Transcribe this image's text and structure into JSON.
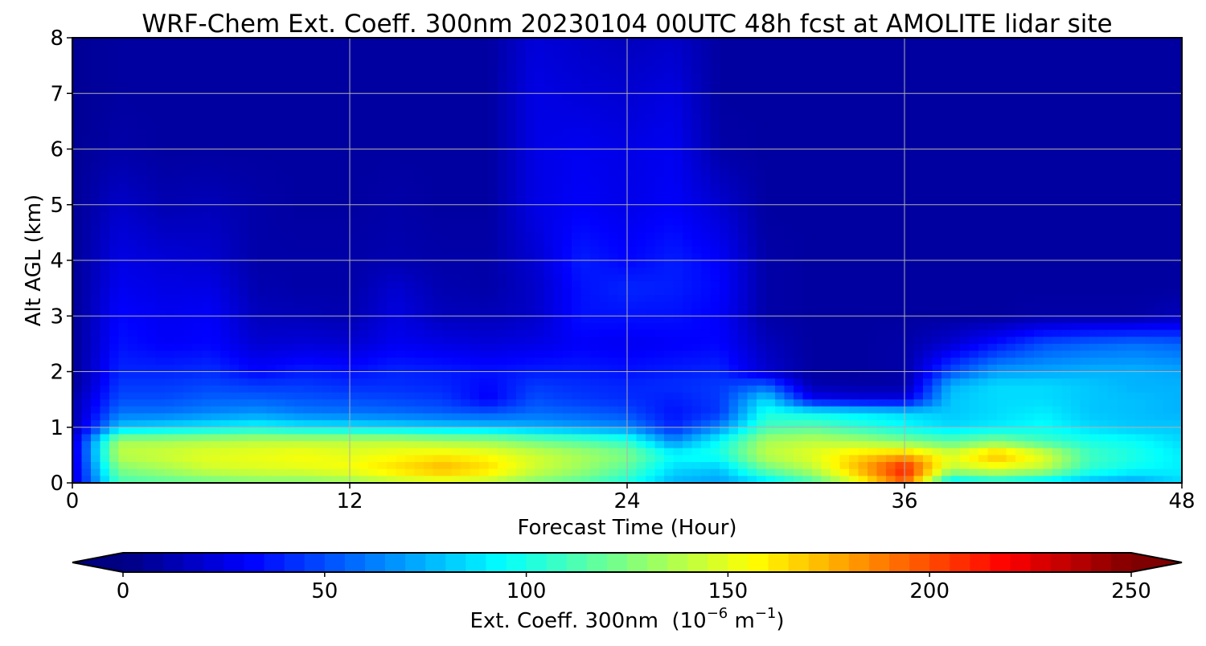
{
  "chart_data": {
    "type": "heatmap",
    "title": "WRF-Chem Ext. Coeff. 300nm  20230104 00UTC 48h fcst at AMOLITE lidar site",
    "xlabel": "Forecast Time (Hour)",
    "ylabel": "Alt AGL (km)",
    "xlim": [
      0,
      48
    ],
    "ylim": [
      0,
      8
    ],
    "xticks": [
      0,
      12,
      24,
      36,
      48
    ],
    "yticks": [
      0,
      1,
      2,
      3,
      4,
      5,
      6,
      7,
      8
    ],
    "grid": true,
    "x": [
      0,
      2,
      4,
      6,
      8,
      10,
      12,
      14,
      16,
      18,
      20,
      22,
      24,
      26,
      28,
      30,
      32,
      34,
      36,
      38,
      40,
      42,
      44,
      46,
      48
    ],
    "y": [
      0,
      0.25,
      0.5,
      0.75,
      1,
      1.25,
      1.5,
      1.75,
      2,
      2.5,
      3,
      3.5,
      4,
      5,
      6,
      7,
      8
    ],
    "z": [
      [
        20,
        110,
        115,
        120,
        125,
        125,
        130,
        140,
        145,
        140,
        125,
        115,
        100,
        75,
        70,
        85,
        110,
        150,
        195,
        85,
        95,
        85,
        75,
        70,
        85
      ],
      [
        20,
        125,
        135,
        145,
        148,
        150,
        155,
        165,
        175,
        165,
        145,
        132,
        115,
        85,
        80,
        120,
        140,
        175,
        215,
        140,
        150,
        140,
        105,
        95,
        90
      ],
      [
        20,
        140,
        145,
        150,
        152,
        155,
        150,
        155,
        160,
        155,
        145,
        135,
        125,
        95,
        100,
        140,
        150,
        165,
        175,
        150,
        175,
        150,
        110,
        100,
        90
      ],
      [
        20,
        135,
        135,
        138,
        140,
        140,
        140,
        140,
        135,
        132,
        122,
        115,
        105,
        65,
        95,
        135,
        140,
        135,
        125,
        115,
        125,
        110,
        100,
        95,
        85
      ],
      [
        10,
        80,
        85,
        90,
        95,
        90,
        88,
        85,
        82,
        80,
        75,
        70,
        65,
        40,
        65,
        110,
        115,
        105,
        95,
        85,
        90,
        95,
        85,
        80,
        80
      ],
      [
        10,
        60,
        60,
        65,
        68,
        62,
        60,
        58,
        55,
        52,
        58,
        55,
        50,
        35,
        45,
        100,
        95,
        90,
        85,
        80,
        85,
        90,
        80,
        78,
        75
      ],
      [
        10,
        50,
        50,
        55,
        55,
        52,
        50,
        48,
        45,
        30,
        50,
        45,
        42,
        38,
        45,
        85,
        30,
        25,
        25,
        80,
        85,
        85,
        80,
        78,
        75
      ],
      [
        5,
        45,
        45,
        48,
        45,
        45,
        42,
        42,
        40,
        32,
        45,
        42,
        40,
        42,
        45,
        55,
        12,
        10,
        10,
        75,
        85,
        85,
        80,
        75,
        75
      ],
      [
        5,
        40,
        40,
        42,
        32,
        38,
        35,
        40,
        38,
        35,
        38,
        38,
        35,
        38,
        40,
        20,
        8,
        8,
        10,
        50,
        70,
        72,
        75,
        75,
        72
      ],
      [
        5,
        35,
        30,
        32,
        20,
        22,
        20,
        28,
        25,
        22,
        25,
        30,
        28,
        30,
        32,
        15,
        8,
        8,
        10,
        20,
        35,
        50,
        55,
        58,
        55
      ],
      [
        5,
        32,
        28,
        30,
        15,
        14,
        12,
        24,
        15,
        14,
        18,
        35,
        35,
        35,
        30,
        10,
        8,
        8,
        8,
        8,
        8,
        10,
        10,
        10,
        15
      ],
      [
        5,
        28,
        25,
        25,
        12,
        10,
        10,
        20,
        12,
        10,
        18,
        35,
        40,
        38,
        32,
        10,
        8,
        8,
        8,
        8,
        8,
        8,
        8,
        8,
        8
      ],
      [
        5,
        25,
        22,
        20,
        10,
        10,
        10,
        12,
        10,
        10,
        20,
        38,
        32,
        38,
        30,
        10,
        8,
        8,
        8,
        8,
        8,
        8,
        8,
        8,
        8
      ],
      [
        5,
        18,
        12,
        14,
        10,
        8,
        8,
        10,
        8,
        8,
        25,
        30,
        26,
        30,
        20,
        8,
        8,
        8,
        8,
        8,
        8,
        8,
        8,
        8,
        8
      ],
      [
        5,
        10,
        8,
        8,
        8,
        8,
        8,
        8,
        8,
        8,
        25,
        28,
        25,
        28,
        10,
        8,
        8,
        8,
        8,
        8,
        8,
        8,
        8,
        8,
        8
      ],
      [
        5,
        8,
        8,
        8,
        8,
        8,
        8,
        8,
        8,
        8,
        25,
        22,
        20,
        24,
        8,
        8,
        8,
        8,
        8,
        8,
        8,
        8,
        8,
        8,
        8
      ],
      [
        5,
        8,
        8,
        8,
        8,
        8,
        8,
        8,
        8,
        8,
        22,
        18,
        15,
        18,
        8,
        8,
        8,
        8,
        8,
        8,
        8,
        8,
        8,
        8,
        8
      ]
    ],
    "colorscale": "jet",
    "colorbar": {
      "label": "Ext. Coeff. 300nm",
      "label_units_base": "(10",
      "label_units_exp1": "−6",
      "label_units_mid": " m",
      "label_units_exp2": "−1",
      "label_units_end": ")",
      "range": [
        0,
        250
      ],
      "ticks": [
        0,
        50,
        100,
        150,
        200,
        250
      ],
      "extend": "both",
      "orientation": "horizontal"
    }
  }
}
